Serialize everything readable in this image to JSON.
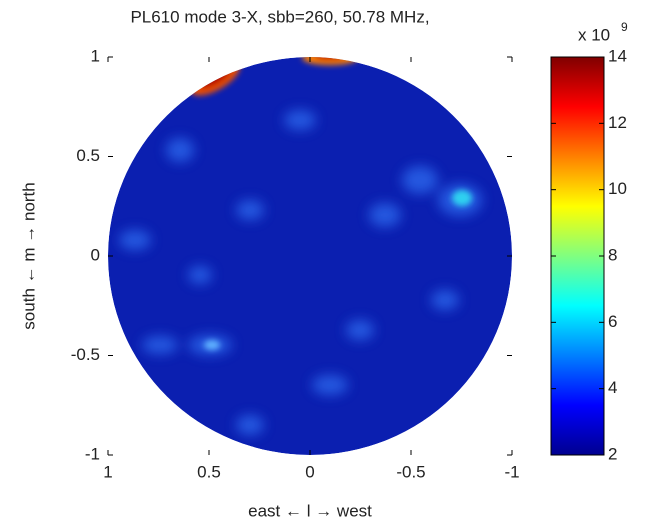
{
  "chart_data": {
    "type": "heatmap",
    "title": "PL610 mode 3-X, sbb=260, 50.78  MHz,",
    "x_label": "east ← l → west",
    "y_label": "south ← m → north",
    "xlim": [
      1,
      -1
    ],
    "xticks": [
      1,
      0.5,
      0,
      -0.5,
      -1
    ],
    "ylim": [
      -1,
      1
    ],
    "yticks": [
      1,
      0.5,
      0,
      -0.5,
      -1
    ],
    "colormap": "jet",
    "clim": [
      2,
      14
    ],
    "cticks": [
      2,
      4,
      6,
      8,
      10,
      12,
      14
    ],
    "colorbar_scale": {
      "base": "x 10",
      "exponent": "9"
    }
  }
}
